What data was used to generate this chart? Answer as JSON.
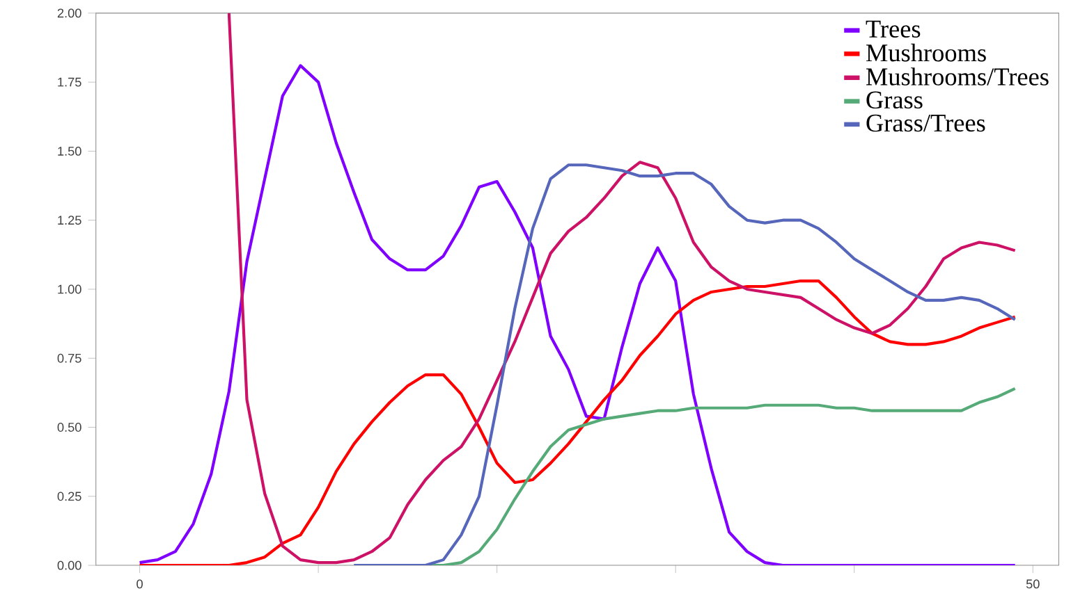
{
  "chart_data": {
    "type": "line",
    "x": [
      0,
      1,
      2,
      3,
      4,
      5,
      6,
      7,
      8,
      9,
      10,
      11,
      12,
      13,
      14,
      15,
      16,
      17,
      18,
      19,
      20,
      21,
      22,
      23,
      24,
      25,
      26,
      27,
      28,
      29,
      30,
      31,
      32,
      33,
      34,
      35,
      36,
      37,
      38,
      39,
      40,
      41,
      42,
      43,
      44,
      45,
      46,
      47,
      48,
      49
    ],
    "xlim": [
      -2.45,
      51.45
    ],
    "xticks": [
      0,
      {
        "value": 10,
        "label": null
      },
      {
        "value": 20,
        "label": null
      },
      {
        "value": 30,
        "label": null
      },
      {
        "value": 40,
        "label": null
      },
      50
    ],
    "ylim": [
      0,
      2
    ],
    "yticks": [
      {
        "value": 0,
        "label": "0.00"
      },
      {
        "value": 0.25,
        "label": "0.25"
      },
      {
        "value": 0.5,
        "label": "0.50"
      },
      {
        "value": 0.75,
        "label": "0.75"
      },
      {
        "value": 1,
        "label": "1.00"
      },
      {
        "value": 1.25,
        "label": "1.25"
      },
      {
        "value": 1.5,
        "label": "1.50"
      },
      {
        "value": 1.75,
        "label": "1.75"
      },
      {
        "value": 2,
        "label": "2.00"
      }
    ],
    "legend": "top right",
    "series": [
      {
        "name": "Trees",
        "color": "#8000ff",
        "values": [
          0.01,
          0.02,
          0.05,
          0.15,
          0.33,
          0.63,
          1.1,
          1.4,
          1.7,
          1.81,
          1.75,
          1.53,
          1.35,
          1.18,
          1.11,
          1.07,
          1.07,
          1.12,
          1.23,
          1.37,
          1.39,
          1.28,
          1.15,
          0.83,
          0.71,
          0.54,
          0.53,
          0.79,
          1.02,
          1.15,
          1.03,
          0.62,
          0.35,
          0.12,
          0.05,
          0.01,
          0,
          0,
          0,
          0,
          0,
          0,
          0,
          0,
          0,
          0,
          0,
          0,
          0,
          0
        ]
      },
      {
        "name": "Mushrooms",
        "color": "#ff0000",
        "values": [
          0,
          0,
          0,
          0,
          0,
          0,
          0.01,
          0.03,
          0.08,
          0.11,
          0.21,
          0.34,
          0.44,
          0.52,
          0.59,
          0.65,
          0.69,
          0.69,
          0.62,
          0.5,
          0.37,
          0.3,
          0.31,
          0.37,
          0.44,
          0.52,
          0.6,
          0.67,
          0.76,
          0.83,
          0.91,
          0.96,
          0.99,
          1.0,
          1.01,
          1.01,
          1.02,
          1.03,
          1.03,
          0.97,
          0.9,
          0.84,
          0.81,
          0.8,
          0.8,
          0.81,
          0.83,
          0.86,
          0.88,
          0.9
        ]
      },
      {
        "name": "Mushrooms/Trees",
        "color": "#cc1166",
        "values": [
          null,
          null,
          null,
          null,
          null,
          2.0,
          0.6,
          0.26,
          0.07,
          0.02,
          0.01,
          0.01,
          0.02,
          0.05,
          0.1,
          0.22,
          0.31,
          0.38,
          0.43,
          0.53,
          0.67,
          0.81,
          0.97,
          1.13,
          1.21,
          1.26,
          1.33,
          1.41,
          1.46,
          1.44,
          1.33,
          1.17,
          1.08,
          1.03,
          1.0,
          0.99,
          0.98,
          0.97,
          0.93,
          0.89,
          0.86,
          0.84,
          0.87,
          0.93,
          1.01,
          1.11,
          1.15,
          1.17,
          1.16,
          1.14
        ]
      },
      {
        "name": "Grass",
        "color": "#55aa77",
        "values": [
          null,
          null,
          null,
          null,
          null,
          null,
          null,
          null,
          null,
          null,
          null,
          null,
          0,
          0,
          0,
          0,
          0,
          0,
          0.01,
          0.05,
          0.13,
          0.24,
          0.34,
          0.43,
          0.49,
          0.51,
          0.53,
          0.54,
          0.55,
          0.56,
          0.56,
          0.57,
          0.57,
          0.57,
          0.57,
          0.58,
          0.58,
          0.58,
          0.58,
          0.57,
          0.57,
          0.56,
          0.56,
          0.56,
          0.56,
          0.56,
          0.56,
          0.59,
          0.61,
          0.64
        ]
      },
      {
        "name": "Grass/Trees",
        "color": "#5566bb",
        "values": [
          null,
          null,
          null,
          null,
          null,
          null,
          null,
          null,
          null,
          null,
          null,
          null,
          0,
          0,
          0,
          0,
          0,
          0.02,
          0.11,
          0.25,
          0.58,
          0.93,
          1.22,
          1.4,
          1.45,
          1.45,
          1.44,
          1.43,
          1.41,
          1.41,
          1.42,
          1.42,
          1.38,
          1.3,
          1.25,
          1.24,
          1.25,
          1.25,
          1.22,
          1.17,
          1.11,
          1.07,
          1.03,
          0.99,
          0.96,
          0.96,
          0.97,
          0.96,
          0.93,
          0.89
        ]
      }
    ]
  }
}
